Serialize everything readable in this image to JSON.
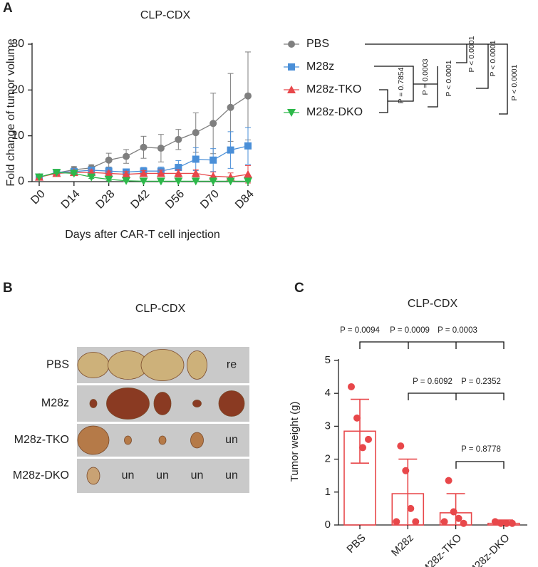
{
  "chart_data": [
    {
      "type": "line",
      "panel_label": "A",
      "title": "CLP-CDX",
      "y_label": "Fold change of tumor volume",
      "x_label": "Days after CAR-T cell injection",
      "categories": [
        "D0",
        null,
        "D14",
        null,
        "D28",
        null,
        "D42",
        null,
        "D56",
        null,
        "D70",
        null,
        "D84"
      ],
      "ylim": [
        0,
        30
      ],
      "yticks": [
        0,
        10,
        20,
        30
      ],
      "series": [
        {
          "name": "PBS",
          "color": "#7f7f7f",
          "marker": "circle",
          "values": [
            1,
            1.9,
            2.6,
            3,
            4.7,
            5.5,
            7.5,
            7.3,
            9.2,
            10.7,
            12.7,
            16.2,
            18.7
          ],
          "errors": [
            0,
            0.3,
            0.7,
            0.7,
            1.5,
            1.5,
            2.4,
            3.0,
            2.2,
            4.3,
            6.6,
            7.4,
            9.6
          ]
        },
        {
          "name": "M28z",
          "color": "#4a8fd8",
          "marker": "square",
          "values": [
            1,
            2.0,
            2.2,
            2.5,
            2.3,
            2.1,
            2.3,
            2.3,
            3.1,
            4.9,
            4.7,
            6.9,
            7.8
          ],
          "errors": [
            0,
            0.2,
            0.5,
            0.6,
            0.8,
            0.7,
            0.8,
            0.9,
            1.5,
            2.5,
            2.5,
            4.0,
            4.0
          ]
        },
        {
          "name": "M28z-TKO",
          "color": "#e8474a",
          "marker": "triangle-up",
          "values": [
            1,
            1.8,
            2.0,
            2.0,
            1.8,
            1.6,
            1.8,
            1.8,
            1.8,
            1.8,
            1.2,
            1.0,
            1.6
          ],
          "errors": [
            0,
            0.2,
            0.4,
            0.5,
            0.5,
            0.6,
            0.6,
            0.7,
            0.8,
            0.8,
            0.9,
            0.9,
            1.9
          ]
        },
        {
          "name": "M28z-DKO",
          "color": "#2db84a",
          "marker": "triangle-down",
          "values": [
            1,
            2.0,
            1.8,
            1.0,
            0.5,
            0.2,
            0.1,
            0.1,
            0.1,
            0.1,
            0.1,
            0.1,
            0.1
          ],
          "errors": [
            0,
            0.2,
            0.3,
            0.3,
            0.3,
            0.2,
            0.1,
            0.1,
            0.1,
            0.1,
            0.1,
            0.1,
            0.1
          ]
        }
      ],
      "annotations": [
        "P = 0.7854",
        "P = 0.0003",
        "P < 0.0001",
        "P < 0.0001",
        "P < 0.0001",
        "P < 0.0001"
      ]
    },
    {
      "type": "bar",
      "panel_label": "C",
      "title": "CLP-CDX",
      "y_label": "Tumor weight (g)",
      "categories": [
        "PBS",
        "M28z",
        "M28z-TKO",
        "M28z-DKO"
      ],
      "color": "#e8474a",
      "values": [
        2.85,
        0.95,
        0.37,
        0.05
      ],
      "errors": [
        0.97,
        1.05,
        0.58,
        0.1
      ],
      "points": [
        [
          4.2,
          3.25,
          2.35,
          2.6
        ],
        [
          2.4,
          1.65,
          0.5,
          0.1,
          0.1
        ],
        [
          1.35,
          0.4,
          0.2,
          0.05,
          0.1
        ],
        [
          0.1,
          0.05,
          0.05,
          0.05
        ]
      ],
      "ylim": [
        0,
        5
      ],
      "yticks": [
        0,
        1,
        2,
        3,
        4,
        5
      ],
      "annotations": [
        "P = 0.0094",
        "P = 0.0009",
        "P = 0.0003",
        "P = 0.6092",
        "P = 0.2352",
        "P = 0.8778"
      ]
    }
  ],
  "panel_b": {
    "panel_label": "B",
    "title": "CLP-CDX",
    "rows": [
      {
        "label": "PBS",
        "cells": [
          null,
          null,
          null,
          null,
          "re"
        ]
      },
      {
        "label": "M28z",
        "cells": [
          null,
          null,
          null,
          null,
          null
        ]
      },
      {
        "label": "M28z-TKO",
        "cells": [
          null,
          null,
          null,
          null,
          "un"
        ]
      },
      {
        "label": "M28z-DKO",
        "cells": [
          null,
          "un",
          "un",
          "un",
          "un"
        ]
      }
    ]
  }
}
